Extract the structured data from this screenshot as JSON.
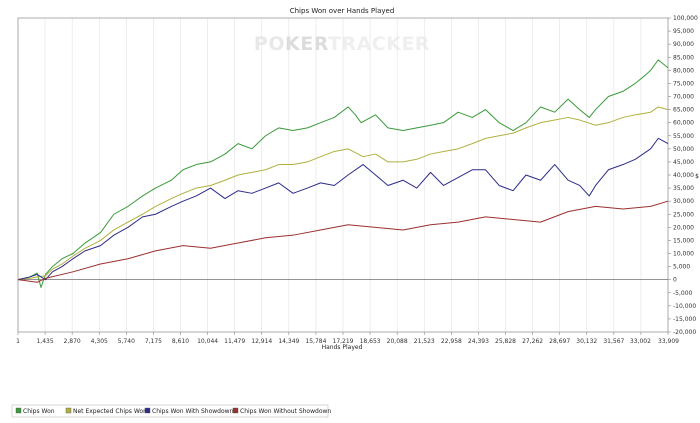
{
  "chart_data": {
    "type": "line",
    "title": "Chips Won over Hands Played",
    "xlabel": "Hands Played",
    "ylabel": "$",
    "watermark": {
      "part1": "PO",
      "part2": "KER",
      "part3": "TRACKER"
    },
    "x_ticks": [
      "1",
      "1,435",
      "2,870",
      "4,305",
      "5,740",
      "7,175",
      "8,610",
      "10,044",
      "11,479",
      "12,914",
      "14,349",
      "15,784",
      "17,219",
      "18,653",
      "20,088",
      "21,523",
      "22,958",
      "24,393",
      "25,828",
      "27,262",
      "28,697",
      "30,132",
      "31,567",
      "33,002",
      "33,909"
    ],
    "xlim": [
      1,
      33909
    ],
    "ylim": [
      -20000,
      100000
    ],
    "y_ticks": [
      "100,000",
      "95,000",
      "90,000",
      "85,000",
      "80,000",
      "75,000",
      "70,000",
      "65,000",
      "60,000",
      "55,000",
      "50,000",
      "45,000",
      "40,000",
      "35,000",
      "30,000",
      "25,000",
      "20,000",
      "15,000",
      "10,000",
      "5,000",
      "0",
      "-5,000",
      "-10,000",
      "-15,000",
      "-20,000"
    ],
    "grid": "vertical",
    "legend_position": "bottom-left",
    "series": [
      {
        "name": "Chips Won",
        "color": "#3a9a3a",
        "x": [
          1,
          600,
          1000,
          1200,
          1435,
          1800,
          2300,
          2870,
          3500,
          4305,
          5000,
          5740,
          6500,
          7175,
          8000,
          8610,
          9300,
          10044,
          10800,
          11479,
          12200,
          12914,
          13600,
          14349,
          15100,
          15784,
          16500,
          17219,
          17600,
          17900,
          18653,
          19300,
          20088,
          20800,
          21523,
          22200,
          22958,
          23700,
          24393,
          25100,
          25828,
          26500,
          27262,
          28000,
          28697,
          29300,
          29800,
          30132,
          30800,
          31567,
          32200,
          32700,
          33002,
          33400,
          33909
        ],
        "values": [
          0,
          1000,
          2500,
          -3000,
          2000,
          5000,
          8000,
          10000,
          14000,
          18000,
          25000,
          28000,
          32000,
          35000,
          38000,
          42000,
          44000,
          45000,
          48000,
          52000,
          50000,
          55000,
          58000,
          57000,
          58000,
          60000,
          62000,
          66000,
          63000,
          60000,
          63000,
          58000,
          57000,
          58000,
          59000,
          60000,
          64000,
          62000,
          65000,
          60000,
          57000,
          60000,
          66000,
          64000,
          69000,
          65000,
          62000,
          65000,
          70000,
          72000,
          75000,
          78000,
          80000,
          84000,
          81000
        ]
      },
      {
        "name": "Net Expected Chips Won",
        "color": "#b0b040",
        "x": [
          1,
          600,
          1000,
          1435,
          1800,
          2300,
          2870,
          3500,
          4305,
          5000,
          5740,
          6500,
          7175,
          8000,
          8610,
          9300,
          10044,
          10800,
          11479,
          12200,
          12914,
          13600,
          14349,
          15100,
          15784,
          16500,
          17219,
          18000,
          18653,
          19300,
          20088,
          20800,
          21523,
          22200,
          22958,
          23700,
          24393,
          25100,
          25828,
          26500,
          27262,
          28000,
          28697,
          29300,
          30132,
          30800,
          31567,
          32200,
          33002,
          33400,
          33909
        ],
        "values": [
          0,
          500,
          1000,
          1500,
          4000,
          6000,
          9000,
          12000,
          15000,
          19000,
          22000,
          25000,
          28000,
          31000,
          33000,
          35000,
          36000,
          38000,
          40000,
          41000,
          42000,
          44000,
          44000,
          45000,
          47000,
          49000,
          50000,
          47000,
          48000,
          45000,
          45000,
          46000,
          48000,
          49000,
          50000,
          52000,
          54000,
          55000,
          56000,
          58000,
          60000,
          61000,
          62000,
          61000,
          59000,
          60000,
          62000,
          63000,
          64000,
          66000,
          65000
        ]
      },
      {
        "name": "Chips Won With Showdown",
        "color": "#2c2c8a",
        "x": [
          1,
          600,
          1000,
          1435,
          1800,
          2300,
          2870,
          3500,
          4305,
          5000,
          5740,
          6500,
          7175,
          8000,
          8610,
          9300,
          10044,
          10800,
          11479,
          12200,
          12914,
          13600,
          14349,
          15100,
          15784,
          16500,
          17219,
          18000,
          18653,
          19300,
          20088,
          20800,
          21523,
          22200,
          22958,
          23700,
          24393,
          25100,
          25828,
          26500,
          27262,
          28000,
          28697,
          29300,
          29800,
          30132,
          30800,
          31567,
          32200,
          33002,
          33400,
          33909
        ],
        "values": [
          0,
          1000,
          2000,
          0,
          3000,
          5000,
          8000,
          11000,
          13000,
          17000,
          20000,
          24000,
          25000,
          28000,
          30000,
          32000,
          35000,
          31000,
          34000,
          33000,
          35000,
          37000,
          33000,
          35000,
          37000,
          36000,
          40000,
          44000,
          40000,
          36000,
          38000,
          35000,
          41000,
          36000,
          39000,
          42000,
          42000,
          36000,
          34000,
          40000,
          38000,
          44000,
          38000,
          36000,
          32000,
          36000,
          42000,
          44000,
          46000,
          50000,
          54000,
          52000
        ]
      },
      {
        "name": "Chips Won Without Showdown",
        "color": "#9a3030",
        "x": [
          1,
          1000,
          1435,
          2870,
          4305,
          5740,
          7175,
          8610,
          10044,
          11479,
          12914,
          14349,
          15784,
          17219,
          18653,
          20088,
          21523,
          22958,
          24393,
          25828,
          27262,
          28697,
          30132,
          31567,
          33002,
          33909
        ],
        "values": [
          0,
          -1000,
          500,
          3000,
          6000,
          8000,
          11000,
          13000,
          12000,
          14000,
          16000,
          17000,
          19000,
          21000,
          20000,
          19000,
          21000,
          22000,
          24000,
          23000,
          22000,
          26000,
          28000,
          27000,
          28000,
          30000
        ]
      }
    ]
  }
}
